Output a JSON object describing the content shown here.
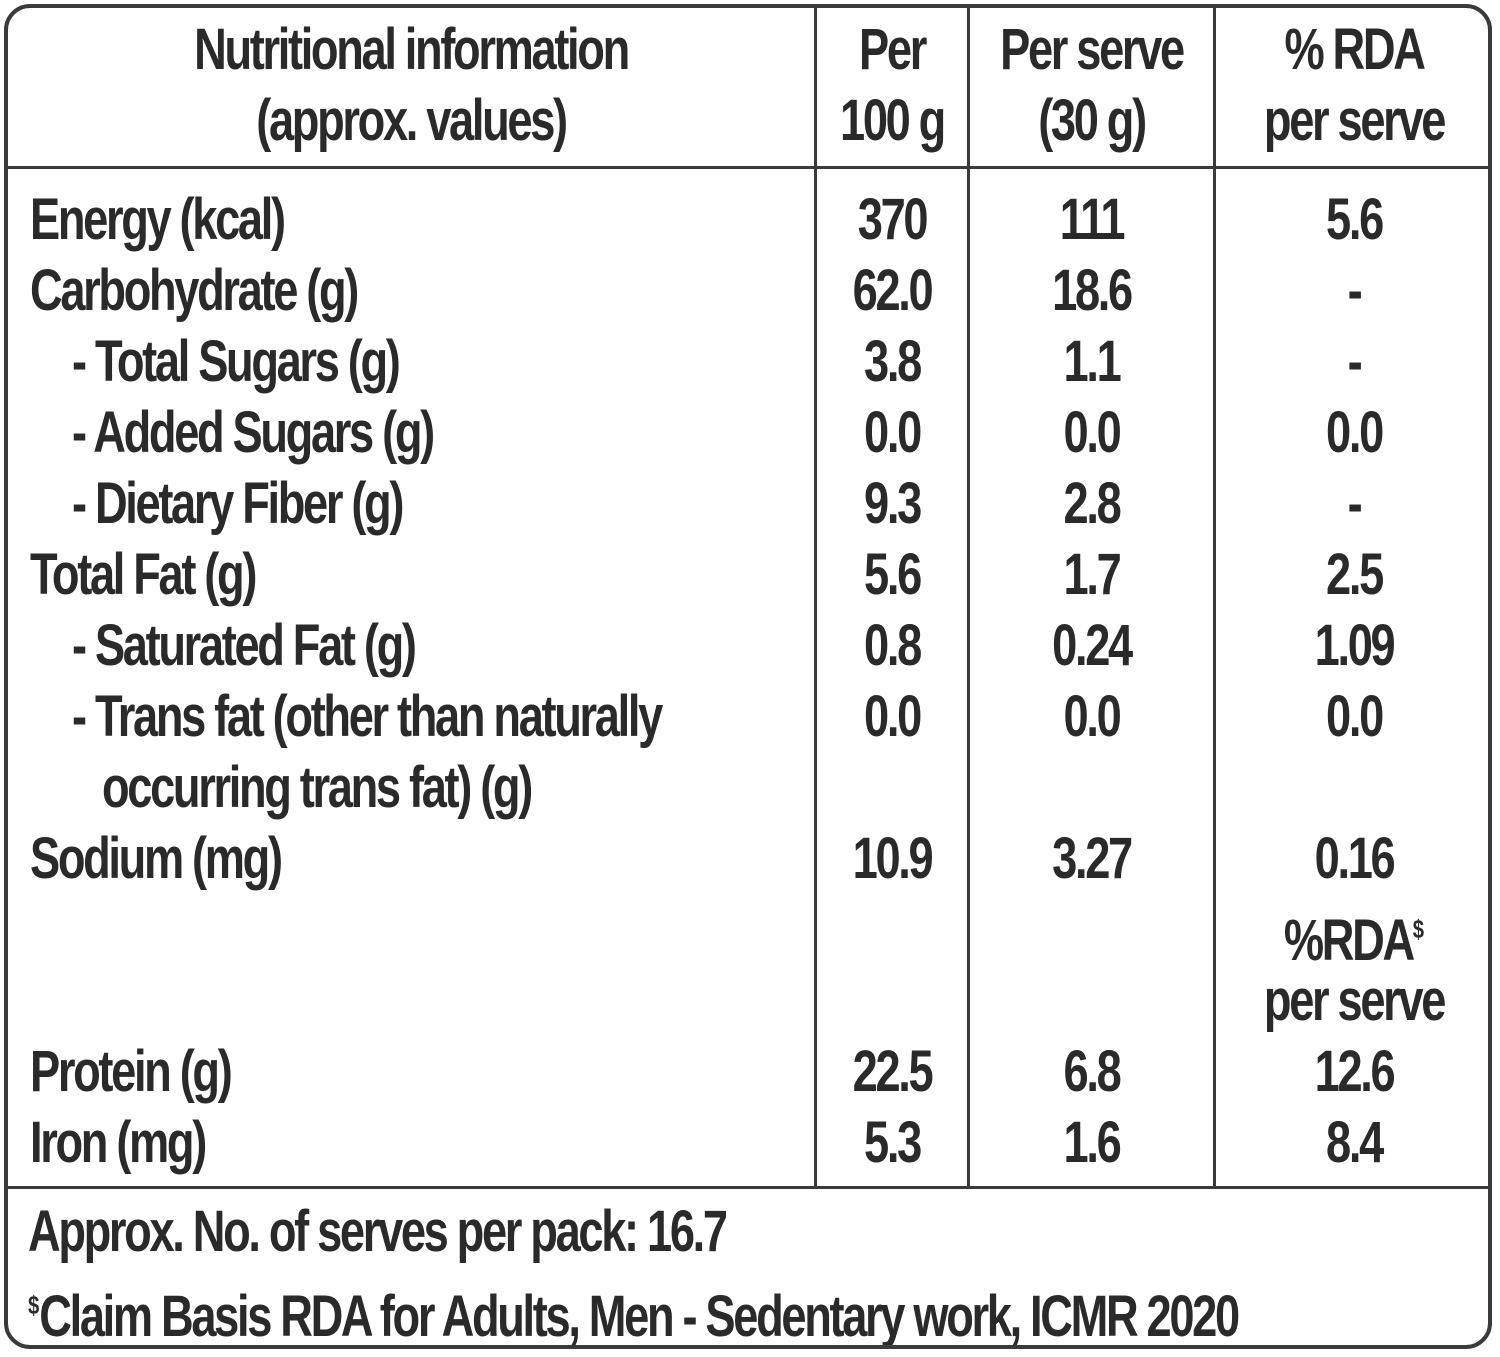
{
  "header": {
    "col_label_line1": "Nutritional information",
    "col_label_line2": "(approx. values)",
    "col_per100_line1": "Per",
    "col_per100_line2": "100 g",
    "col_serve_line1": "Per serve",
    "col_serve_line2": "(30 g)",
    "col_rda_line1": "% RDA",
    "col_rda_line2": "per serve"
  },
  "rows": [
    {
      "label": "Energy (kcal)",
      "per100": "370",
      "serve": "111",
      "rda": "5.6"
    },
    {
      "label": "Carbohydrate (g)",
      "per100": "62.0",
      "serve": "18.6",
      "rda": "-"
    },
    {
      "label": "- Total Sugars (g)",
      "per100": "3.8",
      "serve": "1.1",
      "rda": "-"
    },
    {
      "label": "- Added Sugars (g)",
      "per100": "0.0",
      "serve": "0.0",
      "rda": "0.0"
    },
    {
      "label": "- Dietary Fiber (g)",
      "per100": "9.3",
      "serve": "2.8",
      "rda": "-"
    },
    {
      "label": "Total Fat (g)",
      "per100": "5.6",
      "serve": "1.7",
      "rda": "2.5"
    },
    {
      "label": "- Saturated Fat (g)",
      "per100": "0.8",
      "serve": "0.24",
      "rda": "1.09"
    },
    {
      "label": "- Trans fat (other than naturally",
      "label2": "occurring trans fat) (g)",
      "per100": "0.0",
      "serve": "0.0",
      "rda": "0.0"
    },
    {
      "label": "Sodium (mg)",
      "per100": "10.9",
      "serve": "3.27",
      "rda": "0.16"
    },
    {
      "label": "Protein (g)",
      "per100": "22.5",
      "serve": "6.8",
      "rda": "12.6"
    },
    {
      "label": "Iron (mg)",
      "per100": "5.3",
      "serve": "1.6",
      "rda": "8.4"
    }
  ],
  "subheader": {
    "rda_line1": "%RDA",
    "rda_sup": "$",
    "rda_line2": "per serve"
  },
  "footer": {
    "serves": "Approx. No. of serves per pack: 16.7",
    "claim_sup": "$",
    "claim": "Claim Basis RDA for Adults, Men - Sedentary work, ICMR 2020"
  }
}
